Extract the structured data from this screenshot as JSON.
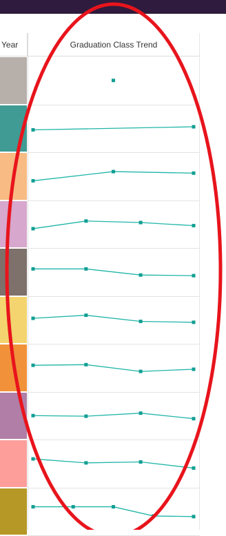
{
  "columns": {
    "year_header": "Year",
    "trend_header": "Graduation Class Trend"
  },
  "colors": {
    "line": "#1fb5a8",
    "marker": "#139e93",
    "annotation": "#e8141c",
    "topbar": "#2f1b3d"
  },
  "rows": [
    {
      "swatch": "#b7afaa",
      "points": [
        [
          0.5,
          0.5
        ]
      ]
    },
    {
      "swatch": "#3f9b94",
      "points": [
        [
          0,
          0.45
        ],
        [
          1,
          0.55
        ]
      ]
    },
    {
      "swatch": "#f7bb83",
      "points": [
        [
          0,
          0.35
        ],
        [
          0.5,
          0.65
        ],
        [
          1,
          0.6
        ]
      ]
    },
    {
      "swatch": "#d7a7cd",
      "points": [
        [
          0,
          0.35
        ],
        [
          0.33,
          0.6
        ],
        [
          0.67,
          0.55
        ],
        [
          1,
          0.45
        ]
      ]
    },
    {
      "swatch": "#7e706a",
      "points": [
        [
          0,
          0.6
        ],
        [
          0.33,
          0.6
        ],
        [
          0.67,
          0.4
        ],
        [
          1,
          0.38
        ]
      ]
    },
    {
      "swatch": "#f3d46e",
      "points": [
        [
          0,
          0.55
        ],
        [
          0.33,
          0.65
        ],
        [
          0.67,
          0.45
        ],
        [
          1,
          0.42
        ]
      ]
    },
    {
      "swatch": "#f1923a",
      "points": [
        [
          0,
          0.58
        ],
        [
          0.33,
          0.6
        ],
        [
          0.67,
          0.38
        ],
        [
          1,
          0.45
        ]
      ]
    },
    {
      "swatch": "#b07ea7",
      "points": [
        [
          0,
          0.5
        ],
        [
          0.33,
          0.48
        ],
        [
          0.67,
          0.58
        ],
        [
          1,
          0.4
        ]
      ]
    },
    {
      "swatch": "#fd9e9b",
      "points": [
        [
          0,
          0.65
        ],
        [
          0.33,
          0.52
        ],
        [
          0.67,
          0.55
        ],
        [
          1,
          0.35
        ]
      ]
    },
    {
      "swatch": "#b59826",
      "points": [
        [
          0,
          0.65
        ],
        [
          0.25,
          0.65
        ],
        [
          0.5,
          0.65
        ],
        [
          0.75,
          0.35
        ],
        [
          1,
          0.33
        ]
      ]
    }
  ]
}
